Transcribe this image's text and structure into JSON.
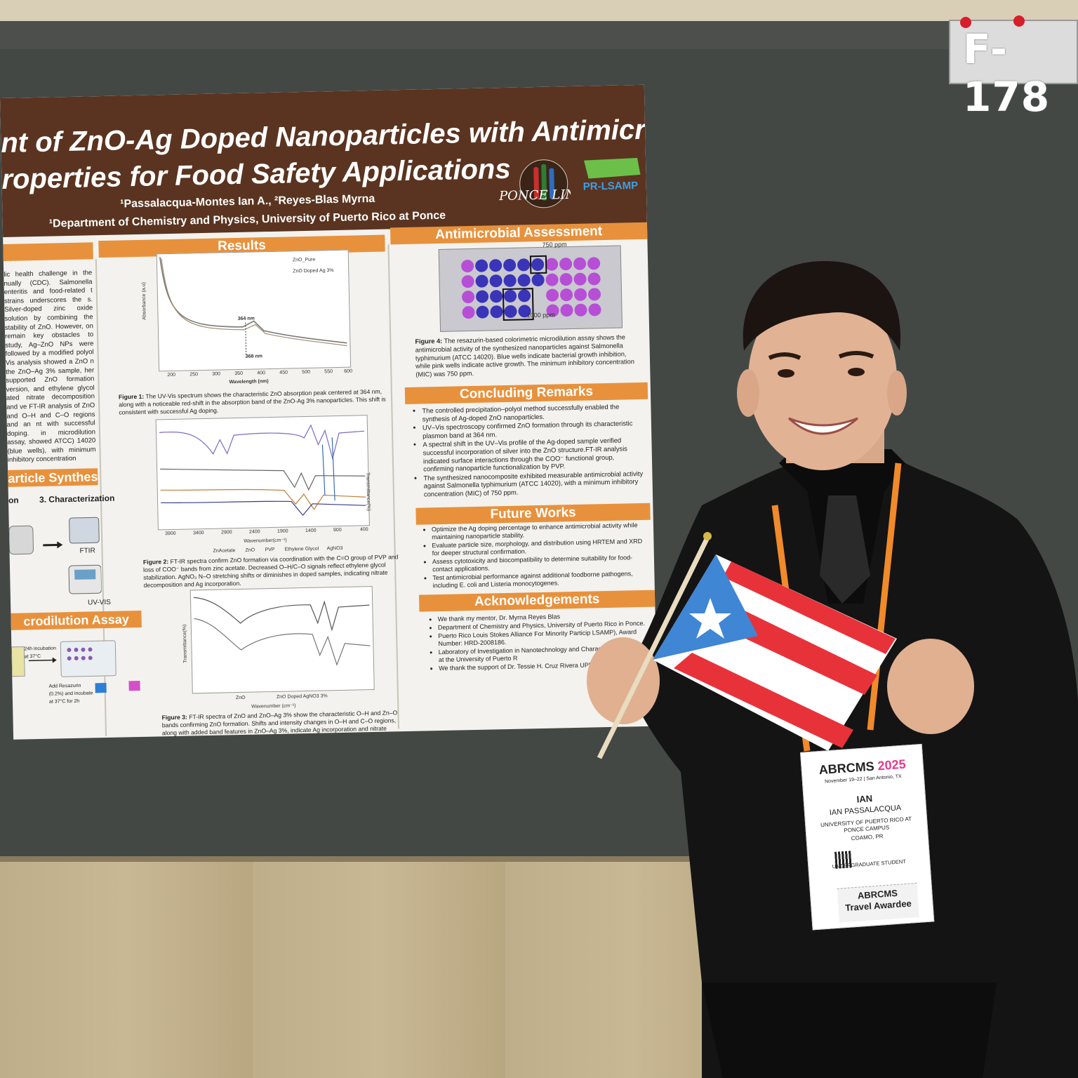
{
  "scene": {
    "booth_number": "F-178"
  },
  "poster": {
    "title_line1": "nt of ZnO-Ag Doped Nanoparticles with Antimicrobial",
    "title_line2": "roperties for Food Safety Applications",
    "authors": "¹Passalacqua-Montes Ian A., ²Reyes-Blas Myrna",
    "affiliation": "¹Department of Chemistry and Physics, University of Puerto Rico at Ponce",
    "logo1": "PONCE LINC",
    "logo2": "PR-LSAMP",
    "sections": {
      "results": "Results",
      "antimicrobial": "Antimicrobial Assessment",
      "concluding": "Concluding Remarks",
      "future": "Future Works",
      "ack": "Acknowledgements",
      "synthesis": "article Synthesis",
      "microdilution": "crodilution Assay"
    },
    "intro_text": "lic health challenge in the nually (CDC). Salmonella enteritis and food-related t strains underscores the s. Silver-doped zinc oxide solution by combining the stability of ZnO. However, on remain key obstacles to study, Ag–ZnO NPs were followed by a modified polyol Vis analysis showed a ZnO n the ZnO–Ag 3% sample, her supported ZnO formation version, and ethylene glycol ated nitrate decomposition and ve FT-IR analysis of ZnO and O–H and C–O regions and an nt with successful doping. in microdilution assay, showed ATCC) 14020 (blue wells), with minimum inhibitory concentration",
    "synthesis_steps": {
      "step_prefix": "on",
      "step3": "3. Characterization",
      "ftir": "FTIR",
      "uvvis": "UV-VIS"
    },
    "assay": {
      "incubation": "24h incubation at 37°C",
      "resazurin": "Add Resazurin (0.2%) and incubate at 37°C for 2h"
    },
    "fig1": {
      "legend1": "ZnO_Pure",
      "legend2": "ZnO Doped Ag 3%",
      "peak1": "364 nm",
      "peak2": "368 nm",
      "xlabel": "Wavelength (nm)",
      "ylabel": "Absorbance (a.u)",
      "xticks": [
        "200",
        "250",
        "300",
        "350",
        "400",
        "450",
        "500",
        "550",
        "600"
      ],
      "caption_label": "Figure 1:",
      "caption": "The UV-Vis spectrum shows the characteristic ZnO absorption peak centered at 364 nm, along with a noticeable red-shift in the absorption band of the ZnO-Ag 3% nanoparticles. This shift is consistent with successful Ag doping."
    },
    "fig2": {
      "xlabel": "Wavenumber(cm⁻¹)",
      "ylabel": "Transmittance(%)",
      "xticks": [
        "3900",
        "3400",
        "2900",
        "2400",
        "1900",
        "1400",
        "900",
        "400"
      ],
      "legend": [
        "ZnAcetate",
        "ZnO",
        "PVP",
        "Ethylene Glycol",
        "AgNO3"
      ],
      "caption_label": "Figure 2:",
      "caption": "FT-IR spectra confirm ZnO formation via coordination with the C=O group of PVP and loss of COO⁻ bands from zinc acetate. Decreased O–H/C–O signals reflect ethylene glycol stabilization. AgNO₃ N–O stretching shifts or diminishes in doped samples, indicating nitrate decomposition and Ag incorporation."
    },
    "fig3": {
      "xlabel": "Wavenumber (cm⁻¹)",
      "ylabel": "Transmittance(%)",
      "legend1": "ZnO",
      "legend2": "ZnO Doped AgNO3 3%",
      "caption_label": "Figure 3:",
      "caption": "FT-IR spectra of ZnO and ZnO–Ag 3% show the characteristic O–H and Zn–O bands confirming ZnO formation. Shifts and intensity changes in O–H and C–O regions, along with added band features in ZnO–Ag 3%, indicate Ag incorporation and nitrate decomposition."
    },
    "fig4": {
      "label_top": "750 ppm",
      "label_bottom": "1000 ppm",
      "caption_label": "Figure 4:",
      "caption": "The resazurin-based colorimetric microdilution assay shows the antimicrobial activity of the synthesized nanoparticles against Salmonella typhimurium (ATCC 14020). Blue wells indicate bacterial growth inhibition, while pink wells indicate active growth. The minimum inhibitory concentration (MIC) was 750 ppm."
    },
    "concluding_items": [
      "The controlled precipitation–polyol method successfully enabled the synthesis of Ag-doped ZnO nanoparticles.",
      "UV–Vis spectroscopy confirmed ZnO formation through its characteristic plasmon band at 364 nm.",
      "A spectral shift in the UV–Vis profile of the Ag-doped sample verified successful incorporation of silver into the ZnO structure.FT-IR analysis indicated surface interactions through the COO⁻ functional group, confirming nanoparticle functionalization by PVP.",
      "The synthesized nanocomposite exhibited measurable antimicrobial activity against Salmonella typhimurium (ATCC 14020), with a minimum inhibitory concentration (MIC) of 750 ppm."
    ],
    "future_items": [
      "Optimize the Ag doping percentage to enhance antimicrobial activity while maintaining nanoparticle stability.",
      "Evaluate particle size, morphology, and distribution using HRTEM and XRD for deeper structural confirmation.",
      "Assess cytotoxicity and biocompatibility to determine suitability for food-contact applications.",
      "Test antimicrobial performance against additional foodborne pathogens, including E. coli and Listeria monocytogenes."
    ],
    "ack_items": [
      "We thank my mentor, Dr. Myrna Reyes Blas",
      "Department of Chemistry and Physics, University of Puerto Rico in Ponce.",
      "Puerto Rico Louis Stokes Alliance For Minority Particip LSAMP), Award Number: HRD-2008186.",
      "Laboratory of Investigation in Nanotechnology and Characterization (LINC) at the University of Puerto R",
      "We thank the support of Dr. Tessie H. Cruz Rivera UPRP)"
    ]
  },
  "badge": {
    "event": "ABRCMS",
    "year": "2025",
    "dates": "November 19–22 | San Antonio, TX",
    "first_name": "IAN",
    "full_name": "IAN PASSALACQUA",
    "school1": "UNIVERSITY OF PUERTO RICO AT",
    "school2": "PONCE CAMPUS",
    "city": "COAMO, PR",
    "role": "UNDERGRADUATE STUDENT",
    "ribbon1": "ABRCMS",
    "ribbon2": "Travel Awardee"
  },
  "colors": {
    "poster_title_band": "#5a3420",
    "section_orange": "#e8913c",
    "flag_red": "#e8323a",
    "flag_blue": "#3f86d4",
    "lanyard": "#f08a2a",
    "suit": "#151515"
  }
}
